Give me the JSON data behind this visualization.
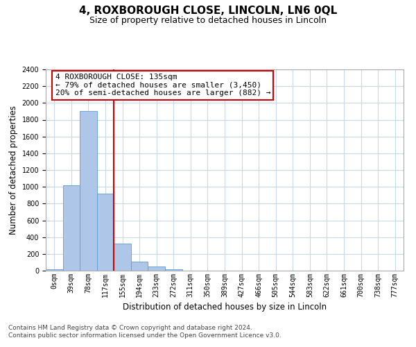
{
  "title": "4, ROXBOROUGH CLOSE, LINCOLN, LN6 0QL",
  "subtitle": "Size of property relative to detached houses in Lincoln",
  "xlabel": "Distribution of detached houses by size in Lincoln",
  "ylabel": "Number of detached properties",
  "bar_labels": [
    "0sqm",
    "39sqm",
    "78sqm",
    "117sqm",
    "155sqm",
    "194sqm",
    "233sqm",
    "272sqm",
    "311sqm",
    "350sqm",
    "389sqm",
    "427sqm",
    "466sqm",
    "505sqm",
    "544sqm",
    "583sqm",
    "622sqm",
    "661sqm",
    "700sqm",
    "738sqm",
    "777sqm"
  ],
  "bar_values": [
    20,
    1020,
    1900,
    920,
    320,
    105,
    50,
    20,
    0,
    0,
    0,
    0,
    0,
    0,
    0,
    0,
    0,
    0,
    0,
    0,
    0
  ],
  "bar_color": "#aec6e8",
  "bar_edge_color": "#5b9bd5",
  "vline_color": "#cc0000",
  "ylim": [
    0,
    2400
  ],
  "yticks": [
    0,
    200,
    400,
    600,
    800,
    1000,
    1200,
    1400,
    1600,
    1800,
    2000,
    2200,
    2400
  ],
  "annotation_line1": "4 ROXBOROUGH CLOSE: 135sqm",
  "annotation_line2": "← 79% of detached houses are smaller (3,450)",
  "annotation_line3": "20% of semi-detached houses are larger (882) →",
  "annotation_box_color": "#cc0000",
  "footer_line1": "Contains HM Land Registry data © Crown copyright and database right 2024.",
  "footer_line2": "Contains public sector information licensed under the Open Government Licence v3.0.",
  "bg_color": "#ffffff",
  "grid_color": "#c8d8e8",
  "title_fontsize": 11,
  "subtitle_fontsize": 9,
  "axis_label_fontsize": 8.5,
  "tick_fontsize": 7,
  "annotation_fontsize": 8,
  "footer_fontsize": 6.5
}
